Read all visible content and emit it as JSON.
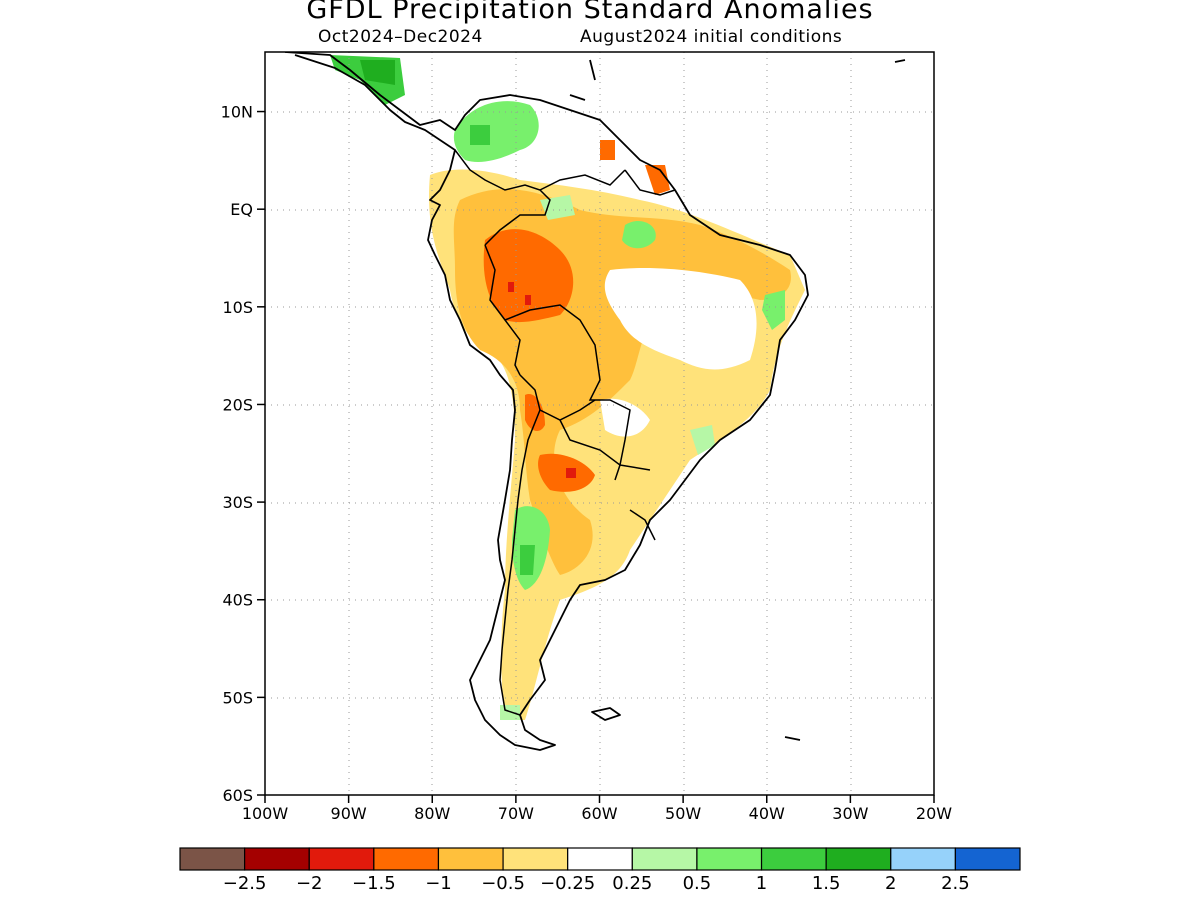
{
  "title": "GFDL Precipitation Standard Anomalies",
  "period": "Oct2024–Dec2024",
  "init": "August2024 initial conditions",
  "lat_labels": [
    "10N",
    "EQ",
    "10S",
    "20S",
    "30S",
    "40S",
    "50S",
    "60S"
  ],
  "lat_values": [
    10,
    0,
    -10,
    -20,
    -30,
    -40,
    -50,
    -60
  ],
  "lon_labels": [
    "100W",
    "90W",
    "80W",
    "70W",
    "60W",
    "50W",
    "40W",
    "30W",
    "20W"
  ],
  "lon_values": [
    -100,
    -90,
    -80,
    -70,
    -60,
    -50,
    -40,
    -30,
    -20
  ],
  "colorbar": {
    "colors": [
      "#7b5447",
      "#a40000",
      "#e11a0c",
      "#ff6a00",
      "#ffc03c",
      "#ffe27a",
      "#ffffff",
      "#b6f7a6",
      "#78f06c",
      "#3ccd3e",
      "#1fae1f",
      "#96d2fa",
      "#1464d2"
    ],
    "labels": [
      "−2.5",
      "−2",
      "−1.5",
      "−1",
      "−0.5",
      "−0.25",
      "0.25",
      "0.5",
      "1",
      "1.5",
      "2",
      "2.5"
    ]
  }
}
